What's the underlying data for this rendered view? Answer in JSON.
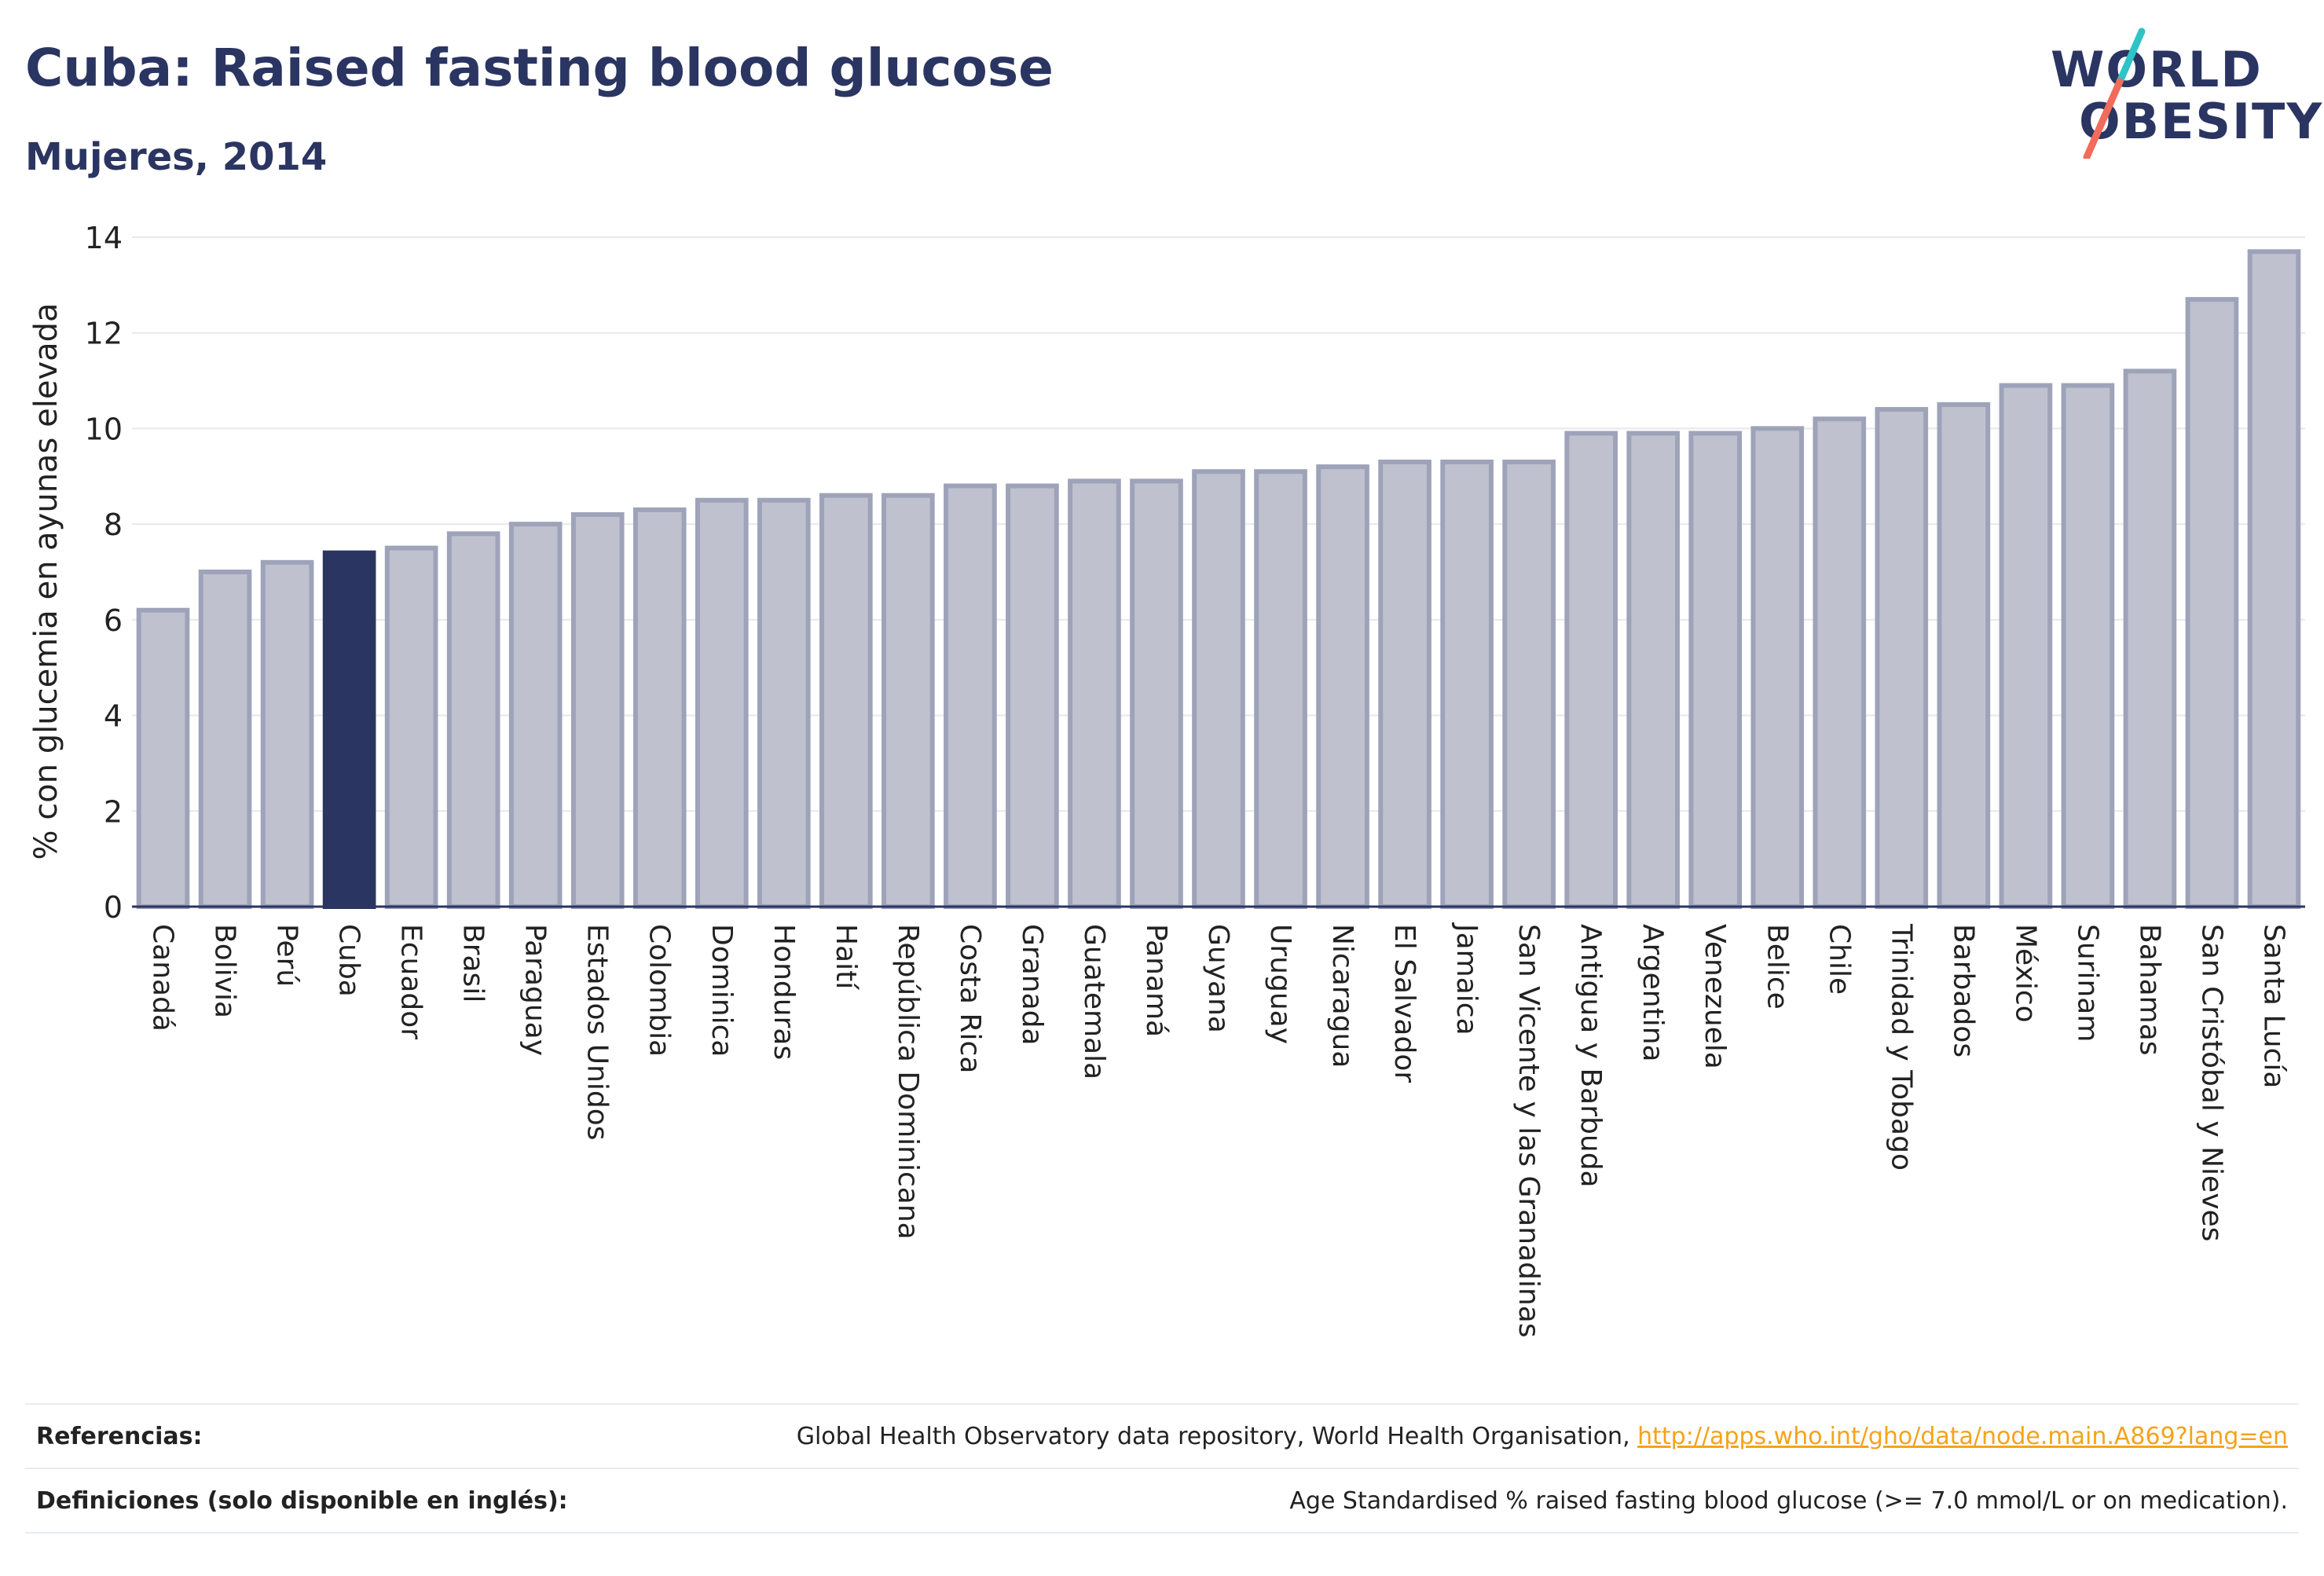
{
  "header": {
    "title": "Cuba: Raised fasting blood glucose",
    "subtitle": "Mujeres, 2014"
  },
  "logo": {
    "line1": "WORLD",
    "line2": "OBESITY",
    "accent_colors": [
      "#2ec4c6",
      "#f26b5b"
    ]
  },
  "chart_data": {
    "type": "bar",
    "ylabel": "% con glucemia en ayunas elevada",
    "xlabel": "",
    "ylim": [
      0,
      14
    ],
    "yticks": [
      0,
      2,
      4,
      6,
      8,
      10,
      12,
      14
    ],
    "grid": true,
    "highlight": "Cuba",
    "colors": {
      "bar": "#bfc2ce",
      "bar_border": "#9ea3b9",
      "highlight": "#2b3562",
      "grid": "#e6e8ee",
      "axis": "#2b3562"
    },
    "categories": [
      "Canadá",
      "Bolivia",
      "Perú",
      "Cuba",
      "Ecuador",
      "Brasil",
      "Paraguay",
      "Estados Unidos",
      "Colombia",
      "Dominica",
      "Honduras",
      "Haití",
      "República Dominicana",
      "Costa Rica",
      "Granada",
      "Guatemala",
      "Panamá",
      "Guyana",
      "Uruguay",
      "Nicaragua",
      "El Salvador",
      "Jamaica",
      "San Vicente y las Granadinas",
      "Antigua y Barbuda",
      "Argentina",
      "Venezuela",
      "Belice",
      "Chile",
      "Trinidad y Tobago",
      "Barbados",
      "México",
      "Surinam",
      "Bahamas",
      "San Cristóbal y Nieves",
      "Santa Lucía"
    ],
    "values": [
      6.2,
      7.0,
      7.2,
      7.4,
      7.5,
      7.8,
      8.0,
      8.2,
      8.3,
      8.5,
      8.5,
      8.6,
      8.6,
      8.8,
      8.8,
      8.9,
      8.9,
      9.1,
      9.1,
      9.2,
      9.3,
      9.3,
      9.3,
      9.9,
      9.9,
      9.9,
      10.0,
      10.2,
      10.4,
      10.5,
      10.9,
      10.9,
      11.2,
      12.7,
      13.7
    ]
  },
  "footer": {
    "references_label": "Referencias:",
    "references_text": "Global Health Observatory data repository, World Health Organisation, ",
    "references_link": "http://apps.who.int/gho/data/node.main.A869?lang=en",
    "definitions_label": "Definiciones (solo disponible en inglés):",
    "definitions_text": "Age Standardised % raised fasting blood glucose (>= 7.0 mmol/L or on medication)."
  }
}
